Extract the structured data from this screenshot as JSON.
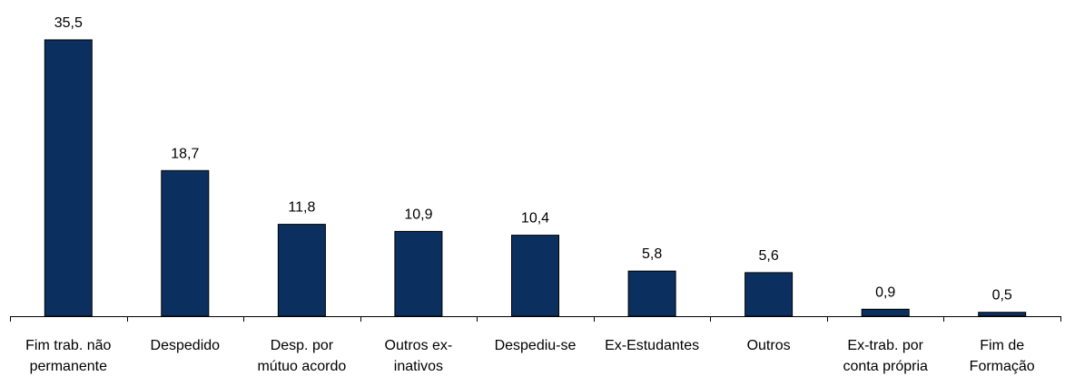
{
  "chart_data": {
    "type": "bar",
    "title": "",
    "xlabel": "",
    "ylabel": "",
    "ylim": [
      0,
      35.5
    ],
    "grid": false,
    "legend": "none",
    "bar_color": "#0b3060",
    "categories": [
      [
        "Fim trab. não",
        "permanente"
      ],
      [
        "Despedido"
      ],
      [
        "Desp. por",
        "mútuo acordo"
      ],
      [
        "Outros ex-",
        "inativos"
      ],
      [
        "Despediu-se"
      ],
      [
        "Ex-Estudantes"
      ],
      [
        "Outros"
      ],
      [
        "Ex-trab. por",
        "conta própria"
      ],
      [
        "Fim de",
        "Formação"
      ]
    ],
    "values": [
      35.5,
      18.7,
      11.8,
      10.9,
      10.4,
      5.8,
      5.6,
      0.9,
      0.5
    ],
    "value_labels": [
      "35,5",
      "18,7",
      "11,8",
      "10,9",
      "10,4",
      "5,8",
      "5,6",
      "0,9",
      "0,5"
    ]
  }
}
